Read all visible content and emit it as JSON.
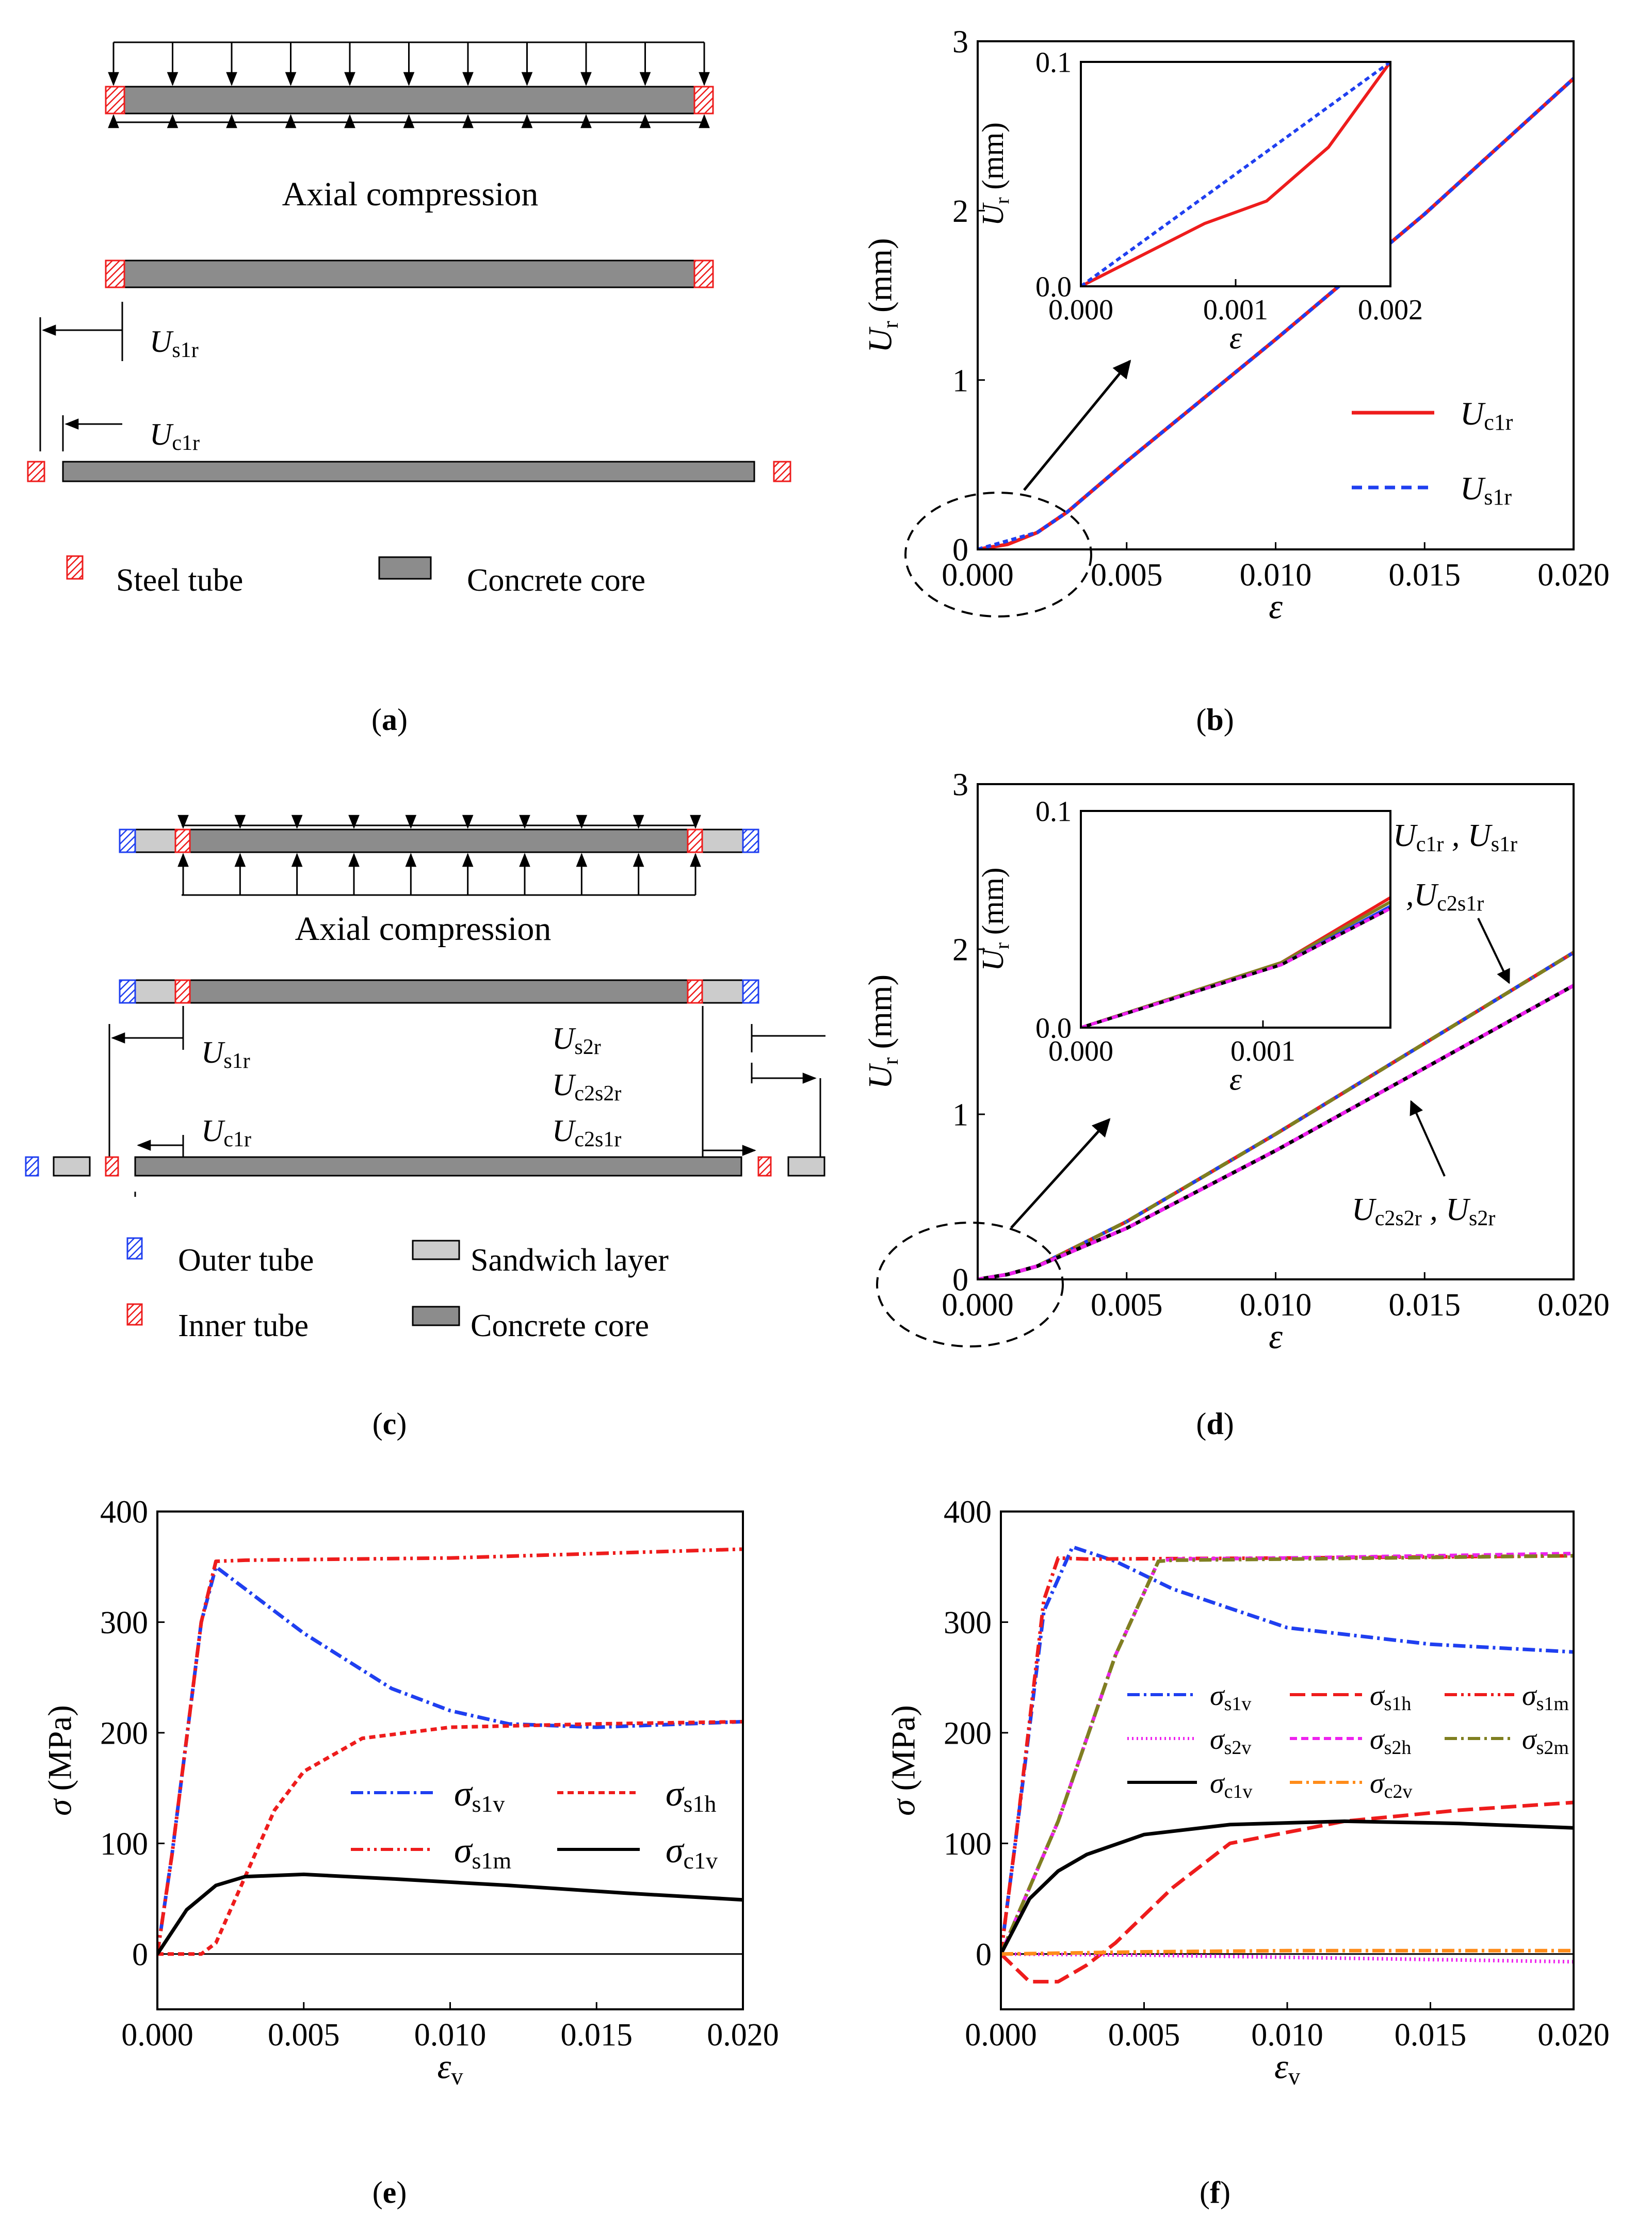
{
  "panels": {
    "a": {
      "caption_letter": "a",
      "title": "Axial compression",
      "label_us1r": "U",
      "label_us1r_sub": "s1r",
      "label_uc1r": "U",
      "label_uc1r_sub": "c1r",
      "legend_steel": "Steel tube",
      "legend_concrete": "Concrete core"
    },
    "b": {
      "caption_letter": "b"
    },
    "c": {
      "caption_letter": "c",
      "title": "Axial compression",
      "label_us1r": "U",
      "label_us1r_sub": "s1r",
      "label_uc1r": "U",
      "label_uc1r_sub": "c1r",
      "label_us2r": "U",
      "label_us2r_sub": "s2r",
      "label_uc2s2r": "U",
      "label_uc2s2r_sub": "c2s2r",
      "label_uc2s1r": "U",
      "label_uc2s1r_sub": "c2s1r",
      "legend_outer": "Outer tube",
      "legend_inner": "Inner tube",
      "legend_sandwich": "Sandwich layer",
      "legend_concrete": "Concrete core"
    },
    "d": {
      "caption_letter": "d",
      "annot_top": "U",
      "annot_top_sub1": "c1r",
      "annot_top_mid": " , U",
      "annot_top_sub2": "s1r",
      "annot_top2": ",U",
      "annot_top2_sub": "c2s1r",
      "annot_bottom": "U",
      "annot_bottom_sub1": "c2s2r",
      "annot_bottom_mid": " , U",
      "annot_bottom_sub2": "s2r"
    },
    "e": {
      "caption_letter": "e"
    },
    "f": {
      "caption_letter": "f"
    }
  },
  "colors": {
    "red": "#ee1c1c",
    "blue": "#1f3ff0",
    "gray_dark": "#8c8c8c",
    "gray_light": "#cccccc",
    "magenta": "#ee22ee",
    "olive": "#7f7f20",
    "orange": "#ff8c1a",
    "black": "#000000"
  },
  "chart_data": [
    {
      "id": "b",
      "type": "line",
      "xlabel": "ε",
      "ylabel": "U",
      "ylabel_sub": "r",
      "ylabel_unit": " (mm)",
      "xlim": [
        0,
        0.02
      ],
      "ylim": [
        0,
        3
      ],
      "xticks": [
        0,
        0.005,
        0.01,
        0.015,
        0.02
      ],
      "xtick_labels": [
        "0.000",
        "0.005",
        "0.010",
        "0.015",
        "0.020"
      ],
      "yticks": [
        0,
        1,
        2,
        3
      ],
      "ytick_labels": [
        "0",
        "1",
        "2",
        "3"
      ],
      "series": [
        {
          "name": "U",
          "sub": "c1r",
          "color": "#ee1c1c",
          "dash": "",
          "x": [
            0,
            0.001,
            0.002,
            0.003,
            0.005,
            0.01,
            0.015,
            0.02
          ],
          "y": [
            0,
            0.03,
            0.1,
            0.22,
            0.52,
            1.24,
            1.98,
            2.78
          ]
        },
        {
          "name": "U",
          "sub": "s1r",
          "color": "#1f3ff0",
          "dash": "10,7",
          "x": [
            0,
            0.001,
            0.002,
            0.003,
            0.005,
            0.01,
            0.015,
            0.02
          ],
          "y": [
            0,
            0.05,
            0.1,
            0.22,
            0.52,
            1.24,
            1.98,
            2.78
          ]
        }
      ],
      "inset": {
        "xlim": [
          0,
          0.002
        ],
        "ylim": [
          0,
          0.1
        ],
        "xticks": [
          0,
          0.001,
          0.002
        ],
        "xtick_labels": [
          "0.000",
          "0.001",
          "0.002"
        ],
        "yticks": [
          0,
          0.1
        ],
        "ytick_labels": [
          "0.0",
          "0.1"
        ],
        "xlabel": "ε",
        "ylabel": "U",
        "ylabel_sub": "r",
        "ylabel_unit": " (mm)",
        "series": [
          {
            "color": "#ee1c1c",
            "dash": "",
            "x": [
              0,
              0.0008,
              0.0012,
              0.0016,
              0.002
            ],
            "y": [
              0,
              0.028,
              0.038,
              0.062,
              0.1
            ]
          },
          {
            "color": "#1f3ff0",
            "dash": "10,7",
            "x": [
              0,
              0.002
            ],
            "y": [
              0,
              0.1
            ]
          }
        ]
      }
    },
    {
      "id": "d",
      "type": "line",
      "xlabel": "ε",
      "ylabel": "U",
      "ylabel_sub": "r",
      "ylabel_unit": " (mm)",
      "xlim": [
        0,
        0.02
      ],
      "ylim": [
        0,
        3
      ],
      "xticks": [
        0,
        0.005,
        0.01,
        0.015,
        0.02
      ],
      "xtick_labels": [
        "0.000",
        "0.005",
        "0.010",
        "0.015",
        "0.020"
      ],
      "yticks": [
        0,
        1,
        2,
        3
      ],
      "ytick_labels": [
        "0",
        "1",
        "2",
        "3"
      ],
      "series": [
        {
          "name": "upper-red",
          "color": "#ee1c1c",
          "dash": "",
          "x": [
            0,
            0.001,
            0.002,
            0.005,
            0.01,
            0.015,
            0.02
          ],
          "y": [
            0,
            0.03,
            0.08,
            0.35,
            0.88,
            1.43,
            1.98
          ]
        },
        {
          "name": "upper-blue",
          "color": "#1f3ff0",
          "dash": "10,7",
          "x": [
            0,
            0.001,
            0.002,
            0.005,
            0.01,
            0.015,
            0.02
          ],
          "y": [
            0,
            0.03,
            0.08,
            0.35,
            0.88,
            1.43,
            1.98
          ]
        },
        {
          "name": "upper-olive",
          "color": "#7f7f20",
          "dash": "20,8,4,8",
          "x": [
            0,
            0.001,
            0.002,
            0.005,
            0.01,
            0.015,
            0.02
          ],
          "y": [
            0,
            0.03,
            0.08,
            0.35,
            0.88,
            1.43,
            1.98
          ]
        },
        {
          "name": "lower-black",
          "color": "#000000",
          "dash": "",
          "x": [
            0,
            0.001,
            0.002,
            0.005,
            0.01,
            0.015,
            0.02
          ],
          "y": [
            0,
            0.03,
            0.08,
            0.31,
            0.78,
            1.28,
            1.78
          ]
        },
        {
          "name": "lower-magenta",
          "color": "#ee22ee",
          "dash": "12,9",
          "x": [
            0,
            0.001,
            0.002,
            0.005,
            0.01,
            0.015,
            0.02
          ],
          "y": [
            0,
            0.03,
            0.08,
            0.31,
            0.78,
            1.28,
            1.78
          ]
        }
      ],
      "inset": {
        "xlim": [
          0,
          0.0017
        ],
        "ylim": [
          0,
          0.1
        ],
        "xticks": [
          0,
          0.001
        ],
        "xtick_labels": [
          "0.000",
          "0.001"
        ],
        "yticks": [
          0,
          0.1
        ],
        "ytick_labels": [
          "0.0",
          "0.1"
        ],
        "xlabel": "ε",
        "ylabel": "U",
        "ylabel_sub": "r",
        "ylabel_unit": " (mm)",
        "series": [
          {
            "color": "#ee1c1c",
            "dash": "",
            "x": [
              0,
              0.0011,
              0.0017
            ],
            "y": [
              0,
              0.03,
              0.06
            ]
          },
          {
            "color": "#7f7f20",
            "dash": "",
            "x": [
              0,
              0.0011,
              0.0017
            ],
            "y": [
              0,
              0.03,
              0.058
            ]
          },
          {
            "color": "#1f3ff0",
            "dash": "",
            "x": [
              0,
              0.0011,
              0.0017
            ],
            "y": [
              0,
              0.029,
              0.056
            ]
          },
          {
            "color": "#000000",
            "dash": "",
            "x": [
              0,
              0.0011,
              0.0017
            ],
            "y": [
              0,
              0.029,
              0.055
            ]
          },
          {
            "color": "#ee22ee",
            "dash": "12,9",
            "x": [
              0,
              0.0011,
              0.0017
            ],
            "y": [
              0,
              0.029,
              0.055
            ]
          }
        ]
      }
    },
    {
      "id": "e",
      "type": "line",
      "xlabel": "ε",
      "xlabel_sub": "v",
      "ylabel": "σ",
      "ylabel_unit": " (MPa)",
      "xlim": [
        0,
        0.02
      ],
      "ylim": [
        -50,
        400
      ],
      "xticks": [
        0,
        0.005,
        0.01,
        0.015,
        0.02
      ],
      "xtick_labels": [
        "0.000",
        "0.005",
        "0.010",
        "0.015",
        "0.020"
      ],
      "yticks": [
        0,
        100,
        200,
        300,
        400
      ],
      "ytick_labels": [
        "0",
        "100",
        "200",
        "300",
        "400"
      ],
      "series": [
        {
          "name": "σ",
          "sub": "s1v",
          "color": "#1f3ff0",
          "dash": "24,8,5,8",
          "x": [
            0,
            0.0005,
            0.0015,
            0.002,
            0.003,
            0.005,
            0.008,
            0.01,
            0.012,
            0.015,
            0.02
          ],
          "y": [
            0,
            90,
            300,
            350,
            330,
            290,
            240,
            220,
            208,
            205,
            210
          ]
        },
        {
          "name": "σ",
          "sub": "s1h",
          "color": "#ee1c1c",
          "dash": "12,8",
          "x": [
            0,
            0.0015,
            0.002,
            0.003,
            0.004,
            0.005,
            0.007,
            0.01,
            0.015,
            0.02
          ],
          "y": [
            0,
            0,
            10,
            70,
            130,
            165,
            195,
            205,
            208,
            210
          ]
        },
        {
          "name": "σ",
          "sub": "s1m",
          "color": "#ee1c1c",
          "dash": "24,8,5,8,5,8",
          "x": [
            0,
            0.0005,
            0.0015,
            0.002,
            0.003,
            0.01,
            0.02
          ],
          "y": [
            0,
            90,
            300,
            355,
            356,
            358,
            366
          ]
        },
        {
          "name": "σ",
          "sub": "c1v",
          "color": "#000000",
          "dash": "",
          "x": [
            0,
            0.001,
            0.002,
            0.003,
            0.005,
            0.008,
            0.012,
            0.016,
            0.02
          ],
          "y": [
            0,
            40,
            62,
            70,
            72,
            68,
            62,
            55,
            49
          ]
        }
      ]
    },
    {
      "id": "f",
      "type": "line",
      "xlabel": "ε",
      "xlabel_sub": "v",
      "ylabel": "σ",
      "ylabel_unit": " (MPa)",
      "xlim": [
        0,
        0.02
      ],
      "ylim": [
        -50,
        400
      ],
      "xticks": [
        0,
        0.005,
        0.01,
        0.015,
        0.02
      ],
      "xtick_labels": [
        "0.000",
        "0.005",
        "0.010",
        "0.015",
        "0.020"
      ],
      "yticks": [
        0,
        100,
        200,
        300,
        400
      ],
      "ytick_labels": [
        "0",
        "100",
        "200",
        "300",
        "400"
      ],
      "series": [
        {
          "name": "σ",
          "sub": "s1v",
          "color": "#1f3ff0",
          "dash": "24,8,5,8",
          "x": [
            0,
            0.0005,
            0.0015,
            0.0025,
            0.004,
            0.006,
            0.01,
            0.015,
            0.02
          ],
          "y": [
            0,
            100,
            310,
            368,
            355,
            330,
            295,
            280,
            273
          ]
        },
        {
          "name": "σ",
          "sub": "s1h",
          "color": "#ee1c1c",
          "dash": "30,12",
          "x": [
            0,
            0.001,
            0.002,
            0.003,
            0.004,
            0.006,
            0.008,
            0.012,
            0.016,
            0.02
          ],
          "y": [
            0,
            -25,
            -25,
            -10,
            10,
            60,
            100,
            120,
            130,
            137
          ]
        },
        {
          "name": "σ",
          "sub": "s1m",
          "color": "#ee1c1c",
          "dash": "24,8,5,8,5,8",
          "x": [
            0,
            0.0005,
            0.0015,
            0.002,
            0.003,
            0.01,
            0.02
          ],
          "y": [
            0,
            100,
            320,
            358,
            357,
            358,
            360
          ]
        },
        {
          "name": "σ",
          "sub": "s2v",
          "color": "#ee22ee",
          "dash": "3,6",
          "x": [
            0,
            0.005,
            0.01,
            0.015,
            0.02
          ],
          "y": [
            0,
            -1,
            -3,
            -5,
            -7
          ]
        },
        {
          "name": "σ",
          "sub": "s2h",
          "color": "#ee22ee",
          "dash": "14,8",
          "x": [
            0,
            0.002,
            0.004,
            0.0055,
            0.006,
            0.01,
            0.02
          ],
          "y": [
            0,
            120,
            270,
            355,
            357,
            358,
            362
          ]
        },
        {
          "name": "σ",
          "sub": "s2m",
          "color": "#7f7f20",
          "dash": "24,8,5,8",
          "x": [
            0,
            0.002,
            0.004,
            0.0055,
            0.006,
            0.01,
            0.02
          ],
          "y": [
            0,
            120,
            270,
            355,
            356,
            357,
            360
          ]
        },
        {
          "name": "σ",
          "sub": "c1v",
          "color": "#000000",
          "dash": "",
          "x": [
            0,
            0.001,
            0.002,
            0.003,
            0.005,
            0.008,
            0.012,
            0.016,
            0.02
          ],
          "y": [
            0,
            50,
            75,
            90,
            108,
            117,
            120,
            118,
            114
          ]
        },
        {
          "name": "σ",
          "sub": "c2v",
          "color": "#ff8c1a",
          "dash": "24,8,5,8",
          "x": [
            0,
            0.005,
            0.01,
            0.015,
            0.02
          ],
          "y": [
            0,
            2,
            3,
            3,
            3
          ]
        }
      ]
    }
  ]
}
